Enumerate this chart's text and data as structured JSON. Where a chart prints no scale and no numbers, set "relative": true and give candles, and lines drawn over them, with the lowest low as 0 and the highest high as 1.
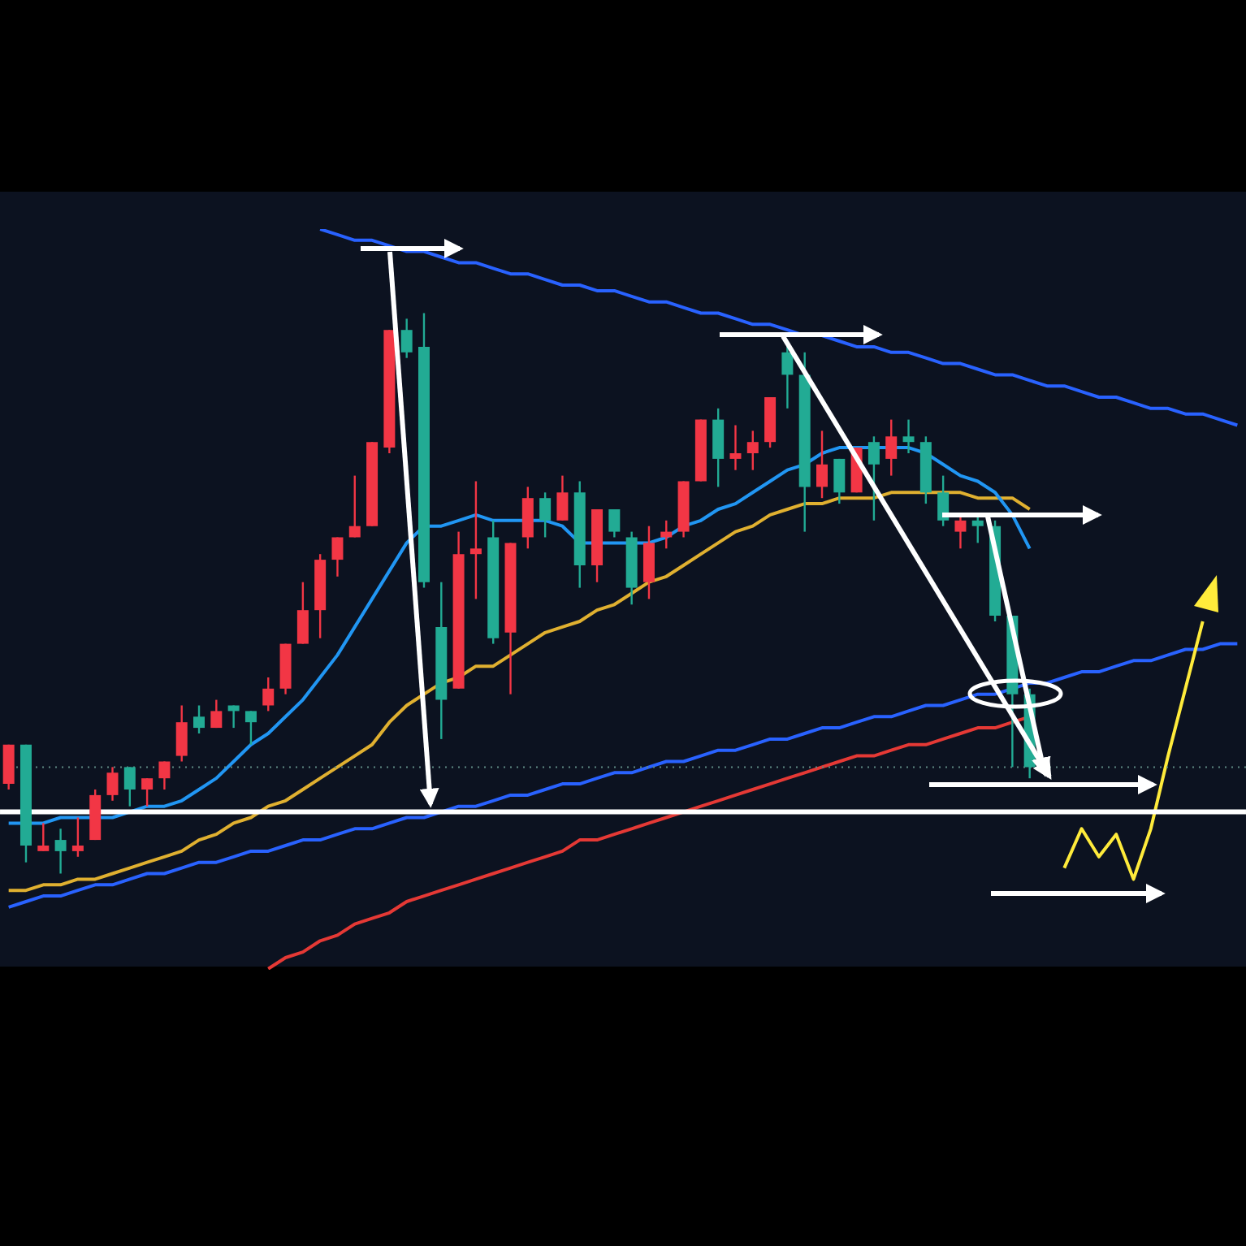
{
  "chart_data": {
    "type": "candlestick",
    "relative": true,
    "categories": [
      null,
      null,
      null,
      null,
      null,
      null,
      null,
      null,
      null,
      null,
      null,
      null,
      null,
      null,
      null,
      null,
      null,
      null,
      null,
      null,
      null,
      null,
      null,
      null,
      null,
      null,
      null,
      null,
      null,
      null,
      null,
      null,
      null,
      null,
      null,
      null,
      null,
      null,
      null,
      null,
      null,
      null,
      null,
      null,
      null,
      null,
      null,
      null,
      null,
      null,
      null,
      null,
      null,
      null,
      null,
      null,
      null,
      null,
      null,
      null,
      null,
      null,
      null,
      null,
      null,
      null,
      null,
      null,
      null,
      null,
      null,
      null
    ],
    "ohlc": [
      [
        0.16,
        0.23,
        0.15,
        0.23
      ],
      [
        0.23,
        0.23,
        0.02,
        0.05
      ],
      [
        0.04,
        0.09,
        0.04,
        0.05
      ],
      [
        0.06,
        0.08,
        0,
        0.04
      ],
      [
        0.04,
        0.1,
        0.03,
        0.05
      ],
      [
        0.06,
        0.15,
        0.06,
        0.14
      ],
      [
        0.14,
        0.19,
        0.13,
        0.18
      ],
      [
        0.19,
        0.19,
        0.12,
        0.15
      ],
      [
        0.15,
        0.17,
        0.12,
        0.17
      ],
      [
        0.17,
        0.2,
        0.15,
        0.2
      ],
      [
        0.21,
        0.3,
        0.2,
        0.27
      ],
      [
        0.28,
        0.3,
        0.25,
        0.26
      ],
      [
        0.26,
        0.31,
        0.26,
        0.29
      ],
      [
        0.3,
        0.3,
        0.26,
        0.29
      ],
      [
        0.29,
        0.29,
        0.23,
        0.27
      ],
      [
        0.3,
        0.35,
        0.29,
        0.33
      ],
      [
        0.33,
        0.41,
        0.32,
        0.41
      ],
      [
        0.41,
        0.52,
        0.41,
        0.47
      ],
      [
        0.47,
        0.57,
        0.42,
        0.56
      ],
      [
        0.56,
        0.6,
        0.53,
        0.6
      ],
      [
        0.6,
        0.71,
        0.6,
        0.62
      ],
      [
        0.62,
        0.77,
        0.62,
        0.77
      ],
      [
        0.76,
        0.97,
        0.75,
        0.97
      ],
      [
        0.97,
        0.99,
        0.92,
        0.93
      ],
      [
        0.94,
        1,
        0.51,
        0.52
      ],
      [
        0.44,
        0.52,
        0.24,
        0.31
      ],
      [
        0.33,
        0.61,
        0.33,
        0.57
      ],
      [
        0.57,
        0.7,
        0.49,
        0.58
      ],
      [
        0.6,
        0.63,
        0.41,
        0.42
      ],
      [
        0.43,
        0.59,
        0.32,
        0.59
      ],
      [
        0.6,
        0.69,
        0.58,
        0.67
      ],
      [
        0.67,
        0.68,
        0.6,
        0.63
      ],
      [
        0.63,
        0.71,
        0.63,
        0.68
      ],
      [
        0.68,
        0.7,
        0.51,
        0.55
      ],
      [
        0.55,
        0.65,
        0.52,
        0.65
      ],
      [
        0.65,
        0.65,
        0.6,
        0.61
      ],
      [
        0.6,
        0.61,
        0.48,
        0.51
      ],
      [
        0.52,
        0.62,
        0.49,
        0.59
      ],
      [
        0.6,
        0.63,
        0.58,
        0.61
      ],
      [
        0.61,
        0.7,
        0.6,
        0.7
      ],
      [
        0.7,
        0.81,
        0.7,
        0.81
      ],
      [
        0.81,
        0.83,
        0.69,
        0.74
      ],
      [
        0.74,
        0.8,
        0.72,
        0.75
      ],
      [
        0.75,
        0.79,
        0.72,
        0.77
      ],
      [
        0.77,
        0.85,
        0.76,
        0.85
      ],
      [
        0.93,
        0.94,
        0.83,
        0.89
      ],
      [
        0.89,
        0.93,
        0.61,
        0.69
      ],
      [
        0.69,
        0.79,
        0.67,
        0.73
      ],
      [
        0.74,
        0.74,
        0.66,
        0.68
      ],
      [
        0.68,
        0.76,
        0.68,
        0.76
      ],
      [
        0.77,
        0.78,
        0.63,
        0.73
      ],
      [
        0.74,
        0.81,
        0.71,
        0.78
      ],
      [
        0.78,
        0.81,
        0.75,
        0.77
      ],
      [
        0.77,
        0.78,
        0.66,
        0.68
      ],
      [
        0.68,
        0.71,
        0.62,
        0.63
      ],
      [
        0.61,
        0.64,
        0.58,
        0.63
      ],
      [
        0.63,
        0.64,
        0.59,
        0.62
      ],
      [
        0.62,
        0.63,
        0.45,
        0.46
      ],
      [
        0.46,
        0.46,
        0.19,
        0.32
      ],
      [
        0.32,
        0.33,
        0.17,
        0.19
      ],
      null,
      null,
      null,
      null,
      null,
      null,
      null,
      null,
      null,
      null,
      null,
      null
    ],
    "colors": [
      "#f23645",
      "#22ab94",
      "#f23645",
      "#22ab94",
      "#f23645",
      "#f23645",
      "#f23645",
      "#22ab94",
      "#f23645",
      "#f23645",
      "#f23645",
      "#22ab94",
      "#f23645",
      "#22ab94",
      "#22ab94",
      "#f23645",
      "#f23645",
      "#f23645",
      "#f23645",
      "#f23645",
      "#f23645",
      "#f23645",
      "#f23645",
      "#22ab94",
      "#22ab94",
      "#22ab94",
      "#f23645",
      "#f23645",
      "#22ab94",
      "#f23645",
      "#f23645",
      "#22ab94",
      "#f23645",
      "#22ab94",
      "#f23645",
      "#22ab94",
      "#22ab94",
      "#f23645",
      "#f23645",
      "#f23645",
      "#f23645",
      "#22ab94",
      "#f23645",
      "#f23645",
      "#f23645",
      "#22ab94",
      "#22ab94",
      "#f23645",
      "#22ab94",
      "#f23645",
      "#22ab94",
      "#f23645",
      "#22ab94",
      "#22ab94",
      "#22ab94",
      "#f23645",
      "#22ab94",
      "#22ab94",
      "#22ab94",
      "#22ab94",
      null,
      null,
      null,
      null,
      null,
      null,
      null,
      null,
      null,
      null,
      null,
      null
    ],
    "series": [
      {
        "type": "line",
        "color": "#2962ff",
        "values": [
          -0.06,
          -0.05,
          -0.04,
          -0.04,
          -0.03,
          -0.02,
          -0.02,
          -0.01,
          0,
          0,
          0.01,
          0.02,
          0.02,
          0.03,
          0.04,
          0.04,
          0.05,
          0.06,
          0.06,
          0.07,
          0.08,
          0.08,
          0.09,
          0.1,
          0.1,
          0.11,
          0.12,
          0.12,
          0.13,
          0.14,
          0.14,
          0.15,
          0.16,
          0.16,
          0.17,
          0.18,
          0.18,
          0.19,
          0.2,
          0.2,
          0.21,
          0.22,
          0.22,
          0.23,
          0.24,
          0.24,
          0.25,
          0.26,
          0.26,
          0.27,
          0.28,
          0.28,
          0.29,
          0.3,
          0.3,
          0.31,
          0.32,
          0.32,
          0.33,
          0.34,
          0.34,
          0.35,
          0.36,
          0.36,
          0.37,
          0.38,
          0.38,
          0.39,
          0.4,
          0.4,
          0.41,
          0.41
        ]
      },
      {
        "type": "line",
        "color": "#2962ff",
        "values": [
          null,
          null,
          null,
          null,
          null,
          null,
          null,
          null,
          null,
          null,
          null,
          null,
          null,
          null,
          null,
          null,
          null,
          null,
          1.15,
          1.14,
          1.13,
          1.13,
          1.12,
          1.11,
          1.11,
          1.1,
          1.09,
          1.09,
          1.08,
          1.07,
          1.07,
          1.06,
          1.05,
          1.05,
          1.04,
          1.04,
          1.03,
          1.02,
          1.02,
          1.01,
          1.0,
          1.0,
          0.99,
          0.98,
          0.98,
          0.97,
          0.96,
          0.96,
          0.95,
          0.94,
          0.94,
          0.93,
          0.93,
          0.92,
          0.91,
          0.91,
          0.9,
          0.89,
          0.89,
          0.88,
          0.87,
          0.87,
          0.86,
          0.85,
          0.85,
          0.84,
          0.83,
          0.83,
          0.82,
          0.82,
          0.81,
          0.8
        ]
      },
      {
        "type": "line",
        "color": "#e53935",
        "values": [
          null,
          null,
          null,
          null,
          null,
          null,
          null,
          null,
          null,
          null,
          null,
          null,
          null,
          null,
          null,
          -0.17,
          -0.15,
          -0.14,
          -0.12,
          -0.11,
          -0.09,
          -0.08,
          -0.07,
          -0.05,
          -0.04,
          -0.03,
          -0.02,
          -0.01,
          0.0,
          0.01,
          0.02,
          0.03,
          0.04,
          0.06,
          0.06,
          0.07,
          0.08,
          0.09,
          0.1,
          0.11,
          0.12,
          0.13,
          0.14,
          0.15,
          0.16,
          0.17,
          0.18,
          0.19,
          0.2,
          0.21,
          0.21,
          0.22,
          0.23,
          0.23,
          0.24,
          0.25,
          0.26,
          0.26,
          0.27,
          0.28,
          null,
          null,
          null,
          null,
          null,
          null,
          null,
          null,
          null,
          null,
          null,
          null
        ]
      },
      {
        "type": "line",
        "color": "#e0b030",
        "values": [
          -0.03,
          -0.03,
          -0.02,
          -0.02,
          -0.01,
          -0.01,
          0,
          0.01,
          0.02,
          0.03,
          0.04,
          0.06,
          0.07,
          0.09,
          0.1,
          0.12,
          0.13,
          0.15,
          0.17,
          0.19,
          0.21,
          0.23,
          0.27,
          0.3,
          0.32,
          0.34,
          0.35,
          0.37,
          0.37,
          0.39,
          0.41,
          0.43,
          0.44,
          0.45,
          0.47,
          0.48,
          0.5,
          0.52,
          0.53,
          0.55,
          0.57,
          0.59,
          0.61,
          0.62,
          0.64,
          0.65,
          0.66,
          0.66,
          0.67,
          0.67,
          0.67,
          0.68,
          0.68,
          0.68,
          0.68,
          0.68,
          0.67,
          0.67,
          0.67,
          0.65,
          null,
          null,
          null,
          null,
          null,
          null,
          null,
          null,
          null,
          null,
          null,
          null
        ]
      },
      {
        "type": "line",
        "color": "#ffeb3b",
        "values": [
          null,
          null,
          null,
          null,
          null,
          null,
          null,
          null,
          null,
          null,
          null,
          null,
          null,
          null,
          null,
          null,
          null,
          null,
          null,
          null,
          null,
          null,
          null,
          null,
          null,
          null,
          null,
          null,
          null,
          null,
          null,
          null,
          null,
          null,
          null,
          null,
          null,
          null,
          null,
          null,
          null,
          null,
          null,
          null,
          null,
          null,
          null,
          null,
          null,
          null,
          null,
          null,
          null,
          null,
          null,
          null,
          null,
          null,
          null,
          null,
          null,
          0.01,
          0.08,
          0.03,
          0.07,
          -0.01,
          0.08,
          0.21,
          0.33,
          0.45,
          null,
          null
        ]
      },
      {
        "type": "line",
        "color": "#2196f3",
        "values": [
          0.09,
          0.09,
          0.09,
          0.1,
          0.1,
          0.1,
          0.1,
          0.11,
          0.12,
          0.12,
          0.13,
          0.15,
          0.17,
          0.2,
          0.23,
          0.25,
          0.28,
          0.31,
          0.35,
          0.39,
          0.44,
          0.49,
          0.54,
          0.59,
          0.62,
          0.62,
          0.63,
          0.64,
          0.63,
          0.63,
          0.63,
          0.63,
          0.62,
          0.59,
          0.59,
          0.59,
          0.59,
          0.59,
          0.6,
          0.62,
          0.63,
          0.65,
          0.66,
          0.68,
          0.7,
          0.72,
          0.73,
          0.75,
          0.76,
          0.76,
          0.76,
          0.76,
          0.76,
          0.75,
          0.73,
          0.71,
          0.7,
          0.68,
          0.64,
          0.58,
          null,
          null,
          null,
          null,
          null,
          null,
          null,
          null,
          null,
          null,
          null,
          null
        ]
      }
    ],
    "ref_lines": [
      {
        "axis": "y",
        "value": 0.11,
        "color": "#ffffff",
        "line_style": "solid"
      },
      {
        "axis": "y",
        "value": 0.19,
        "color": "#5f8a84",
        "line_style": "dotted"
      }
    ]
  }
}
